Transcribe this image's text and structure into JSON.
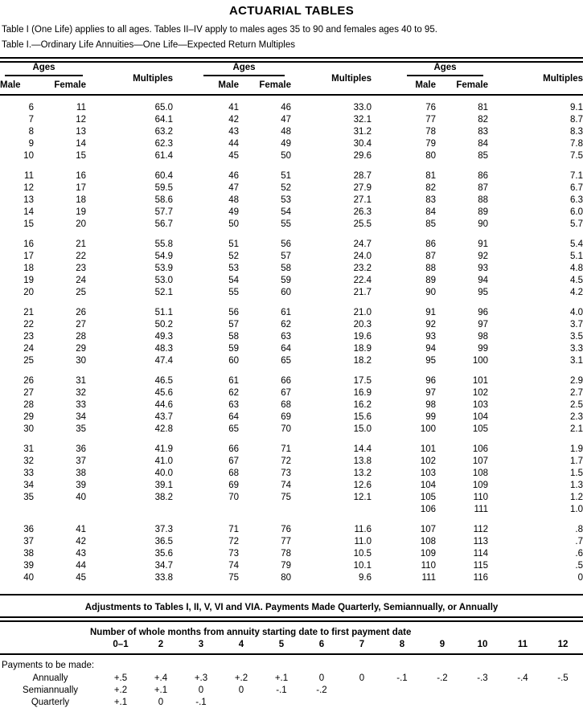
{
  "page": {
    "title": "ACTUARIAL TABLES",
    "intro": "Table I (One Life) applies to all ages. Tables II–IV apply to males ages 35 to 90 and females ages 40 to 95.",
    "table_caption": "Table I.—Ordinary Life Annuities—One Life—Expected Return Multiples"
  },
  "main_table": {
    "group_header": "Ages",
    "col_male": "Male",
    "col_female": "Female",
    "col_multiples": "Multiples",
    "blocks": [
      [
        [
          "6",
          "11",
          "65.0",
          "41",
          "46",
          "33.0",
          "76",
          "81",
          "9.1"
        ],
        [
          "7",
          "12",
          "64.1",
          "42",
          "47",
          "32.1",
          "77",
          "82",
          "8.7"
        ],
        [
          "8",
          "13",
          "63.2",
          "43",
          "48",
          "31.2",
          "78",
          "83",
          "8.3"
        ],
        [
          "9",
          "14",
          "62.3",
          "44",
          "49",
          "30.4",
          "79",
          "84",
          "7.8"
        ],
        [
          "10",
          "15",
          "61.4",
          "45",
          "50",
          "29.6",
          "80",
          "85",
          "7.5"
        ]
      ],
      [
        [
          "11",
          "16",
          "60.4",
          "46",
          "51",
          "28.7",
          "81",
          "86",
          "7.1"
        ],
        [
          "12",
          "17",
          "59.5",
          "47",
          "52",
          "27.9",
          "82",
          "87",
          "6.7"
        ],
        [
          "13",
          "18",
          "58.6",
          "48",
          "53",
          "27.1",
          "83",
          "88",
          "6.3"
        ],
        [
          "14",
          "19",
          "57.7",
          "49",
          "54",
          "26.3",
          "84",
          "89",
          "6.0"
        ],
        [
          "15",
          "20",
          "56.7",
          "50",
          "55",
          "25.5",
          "85",
          "90",
          "5.7"
        ]
      ],
      [
        [
          "16",
          "21",
          "55.8",
          "51",
          "56",
          "24.7",
          "86",
          "91",
          "5.4"
        ],
        [
          "17",
          "22",
          "54.9",
          "52",
          "57",
          "24.0",
          "87",
          "92",
          "5.1"
        ],
        [
          "18",
          "23",
          "53.9",
          "53",
          "58",
          "23.2",
          "88",
          "93",
          "4.8"
        ],
        [
          "19",
          "24",
          "53.0",
          "54",
          "59",
          "22.4",
          "89",
          "94",
          "4.5"
        ],
        [
          "20",
          "25",
          "52.1",
          "55",
          "60",
          "21.7",
          "90",
          "95",
          "4.2"
        ]
      ],
      [
        [
          "21",
          "26",
          "51.1",
          "56",
          "61",
          "21.0",
          "91",
          "96",
          "4.0"
        ],
        [
          "22",
          "27",
          "50.2",
          "57",
          "62",
          "20.3",
          "92",
          "97",
          "3.7"
        ],
        [
          "23",
          "28",
          "49.3",
          "58",
          "63",
          "19.6",
          "93",
          "98",
          "3.5"
        ],
        [
          "24",
          "29",
          "48.3",
          "59",
          "64",
          "18.9",
          "94",
          "99",
          "3.3"
        ],
        [
          "25",
          "30",
          "47.4",
          "60",
          "65",
          "18.2",
          "95",
          "100",
          "3.1"
        ]
      ],
      [
        [
          "26",
          "31",
          "46.5",
          "61",
          "66",
          "17.5",
          "96",
          "101",
          "2.9"
        ],
        [
          "27",
          "32",
          "45.6",
          "62",
          "67",
          "16.9",
          "97",
          "102",
          "2.7"
        ],
        [
          "28",
          "33",
          "44.6",
          "63",
          "68",
          "16.2",
          "98",
          "103",
          "2.5"
        ],
        [
          "29",
          "34",
          "43.7",
          "64",
          "69",
          "15.6",
          "99",
          "104",
          "2.3"
        ],
        [
          "30",
          "35",
          "42.8",
          "65",
          "70",
          "15.0",
          "100",
          "105",
          "2.1"
        ]
      ],
      [
        [
          "31",
          "36",
          "41.9",
          "66",
          "71",
          "14.4",
          "101",
          "106",
          "1.9"
        ],
        [
          "32",
          "37",
          "41.0",
          "67",
          "72",
          "13.8",
          "102",
          "107",
          "1.7"
        ],
        [
          "33",
          "38",
          "40.0",
          "68",
          "73",
          "13.2",
          "103",
          "108",
          "1.5"
        ],
        [
          "34",
          "39",
          "39.1",
          "69",
          "74",
          "12.6",
          "104",
          "109",
          "1.3"
        ],
        [
          "35",
          "40",
          "38.2",
          "70",
          "75",
          "12.1",
          "105",
          "110",
          "1.2"
        ],
        [
          "",
          "",
          "",
          "",
          "",
          "",
          "106",
          "111",
          "1.0"
        ]
      ],
      [
        [
          "36",
          "41",
          "37.3",
          "71",
          "76",
          "11.6",
          "107",
          "112",
          ".8"
        ],
        [
          "37",
          "42",
          "36.5",
          "72",
          "77",
          "11.0",
          "108",
          "113",
          ".7"
        ],
        [
          "38",
          "43",
          "35.6",
          "73",
          "78",
          "10.5",
          "109",
          "114",
          ".6"
        ],
        [
          "39",
          "44",
          "34.7",
          "74",
          "79",
          "10.1",
          "110",
          "115",
          ".5"
        ],
        [
          "40",
          "45",
          "33.8",
          "75",
          "80",
          "9.6",
          "111",
          "116",
          "0"
        ]
      ]
    ]
  },
  "adjustments": {
    "title": "Adjustments to Tables I, II, V, VI and VIA. Payments Made Quarterly, Semiannually, or Annually",
    "months_header": "Number of whole months from annuity starting date to first payment date",
    "month_cols": [
      "0–1",
      "2",
      "3",
      "4",
      "5",
      "6",
      "7",
      "8",
      "9",
      "10",
      "11",
      "12"
    ],
    "payments_intro": "Payments to be made:",
    "rows": [
      {
        "label": "Annually",
        "values": [
          "+.5",
          "+.4",
          "+.3",
          "+.2",
          "+.1",
          "0",
          "0",
          "-.1",
          "-.2",
          "-.3",
          "-.4",
          "-.5"
        ]
      },
      {
        "label": "Semiannually",
        "values": [
          "+.2",
          "+.1",
          "0",
          "0",
          "-.1",
          "-.2",
          "",
          "",
          "",
          "",
          "",
          ""
        ]
      },
      {
        "label": "Quarterly",
        "values": [
          "+.1",
          "0",
          "-.1",
          "",
          "",
          "",
          "",
          "",
          "",
          "",
          "",
          ""
        ]
      }
    ]
  }
}
